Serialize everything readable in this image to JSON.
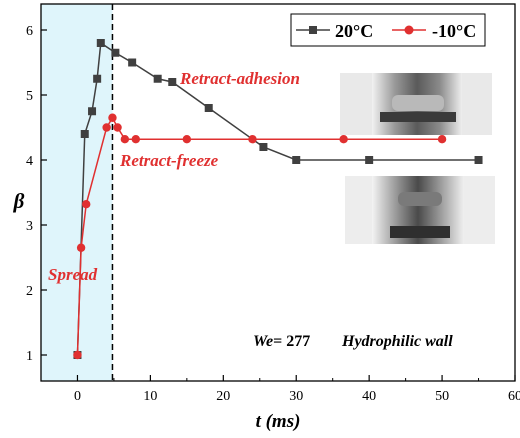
{
  "chart_data": {
    "type": "line",
    "xlabel": "t (ms)",
    "ylabel": "β",
    "xlim": [
      -5,
      60
    ],
    "ylim": [
      0.6,
      6.4
    ],
    "x_ticks": [
      0,
      10,
      20,
      30,
      40,
      50,
      60
    ],
    "y_ticks": [
      1,
      2,
      3,
      4,
      5,
      6
    ],
    "grid": false,
    "legend": "top-right",
    "shaded_region": {
      "x_from": -5,
      "x_to": 4.8,
      "color": "#dff5fb"
    },
    "dashed_vline_x": 4.8,
    "series": [
      {
        "name": "20°C",
        "color": "#404040",
        "marker": "square",
        "x": [
          0,
          1,
          2,
          2.7,
          3.2,
          5.2,
          7.5,
          11,
          13,
          18,
          25.5,
          30,
          40,
          55
        ],
        "y": [
          1.0,
          4.4,
          4.75,
          5.25,
          5.8,
          5.65,
          5.5,
          5.25,
          5.2,
          4.8,
          4.2,
          4.0,
          4.0,
          4.0
        ]
      },
      {
        "name": "-10°C",
        "color": "#e03030",
        "marker": "circle",
        "x": [
          0,
          0.5,
          1.2,
          4,
          4.8,
          5.5,
          6.5,
          8,
          15,
          24,
          36.5,
          50
        ],
        "y": [
          1.0,
          2.65,
          3.32,
          4.5,
          4.65,
          4.5,
          4.32,
          4.32,
          4.32,
          4.32,
          4.32,
          4.32
        ]
      }
    ],
    "annotations": {
      "retract_adhesion": "Retract-adhesion",
      "retract_freeze": "Retract-freeze",
      "spread": "Spread",
      "we_label": "We",
      "we_value": "= 277",
      "wall_label": "Hydrophilic wall"
    }
  }
}
